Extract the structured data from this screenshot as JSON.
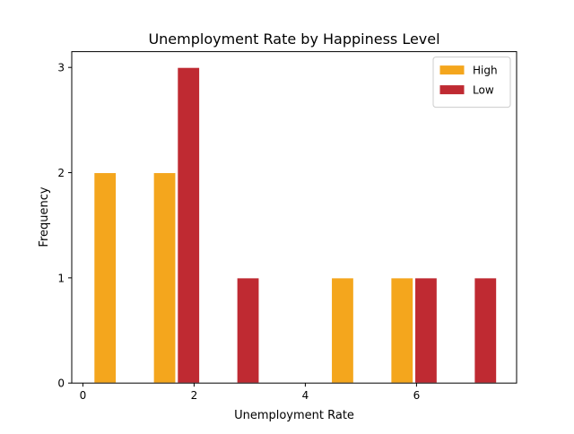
{
  "chart_data": {
    "type": "bar",
    "title": "Unemployment Rate by Happiness Level",
    "xlabel": "Unemployment Rate",
    "ylabel": "Frequency",
    "xlim": [
      -0.2,
      7.8
    ],
    "ylim": [
      0,
      3.15
    ],
    "xticks": [
      0,
      2,
      4,
      6
    ],
    "xtick_labels": [
      "0",
      "2",
      "4",
      "6"
    ],
    "yticks": [
      0,
      1,
      2,
      3
    ],
    "ytick_labels": [
      "0",
      "1",
      "2",
      "3"
    ],
    "bar_width": 0.4,
    "legend_position": "top-right",
    "grid": false,
    "series": [
      {
        "name": "High",
        "color": "#F4A61D",
        "x": [
          0.4,
          1.47,
          4.67,
          5.74
        ],
        "values": [
          2,
          2,
          1,
          1
        ]
      },
      {
        "name": "Low",
        "color": "#BF2A32",
        "x": [
          1.9,
          2.97,
          6.17,
          7.24
        ],
        "values": [
          3,
          1,
          1,
          1
        ]
      }
    ]
  }
}
